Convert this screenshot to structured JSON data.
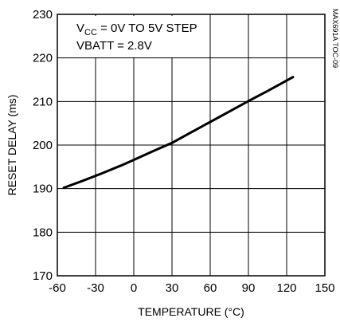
{
  "chart_data": {
    "type": "line",
    "xlabel": "TEMPERATURE (°C)",
    "ylabel": "RESET DELAY (ms)",
    "xlim": [
      -60,
      150
    ],
    "ylim": [
      170,
      230
    ],
    "xticks": [
      -60,
      -30,
      0,
      30,
      60,
      90,
      120,
      150
    ],
    "yticks": [
      170,
      180,
      190,
      200,
      210,
      220,
      230
    ],
    "grid": true,
    "annotation_lines": [
      {
        "main": "V",
        "sub": "CC",
        "rest": " = 0V TO 5V STEP"
      },
      {
        "main": "VBATT = 2.8V",
        "sub": "",
        "rest": ""
      }
    ],
    "side_code": "MAX691A TOC-09",
    "series": [
      {
        "x": [
          -55,
          -40,
          -25,
          -10,
          0,
          15,
          30,
          45,
          60,
          75,
          90,
          105,
          125
        ],
        "y": [
          190.2,
          191.8,
          193.5,
          195.3,
          196.6,
          198.6,
          200.5,
          202.9,
          205.3,
          207.7,
          210.1,
          212.4,
          215.6
        ]
      }
    ]
  }
}
